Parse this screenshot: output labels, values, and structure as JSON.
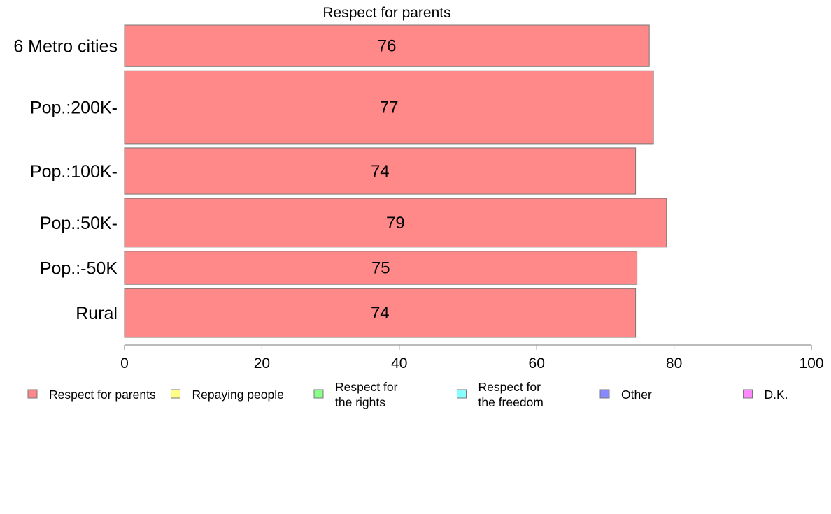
{
  "chart_data": {
    "type": "bar",
    "orientation": "horizontal",
    "title": "Respect for parents",
    "categories": [
      "6 Metro cities",
      "Pop.:200K-",
      "Pop.:100K-",
      "Pop.:50K-",
      "Pop.:-50K",
      "Rural"
    ],
    "values": [
      76.4,
      77.0,
      74.4,
      78.9,
      74.6,
      74.4
    ],
    "labels": [
      "76",
      "77",
      "74",
      "79",
      "75",
      "74"
    ],
    "bar_weights": [
      0.85,
      1.5,
      0.95,
      1.0,
      0.68,
      1.0
    ],
    "xlim": [
      0,
      100
    ],
    "xticks": [
      "0",
      "20",
      "40",
      "60",
      "80",
      "100"
    ],
    "xlabel": "",
    "ylabel": "",
    "grid": false,
    "legend_position": "bottom",
    "legend": [
      {
        "lines": [
          "Respect for parents"
        ],
        "color": "#ff8888"
      },
      {
        "lines": [
          "Repaying people"
        ],
        "color": "#ffff88"
      },
      {
        "lines": [
          "Respect for",
          "the rights"
        ],
        "color": "#88ff88"
      },
      {
        "lines": [
          "Respect for",
          "the freedom"
        ],
        "color": "#88ffff"
      },
      {
        "lines": [
          "Other"
        ],
        "color": "#8888ff"
      },
      {
        "lines": [
          "D.K."
        ],
        "color": "#ff88ff"
      }
    ],
    "bar_color": "#ff8888"
  }
}
